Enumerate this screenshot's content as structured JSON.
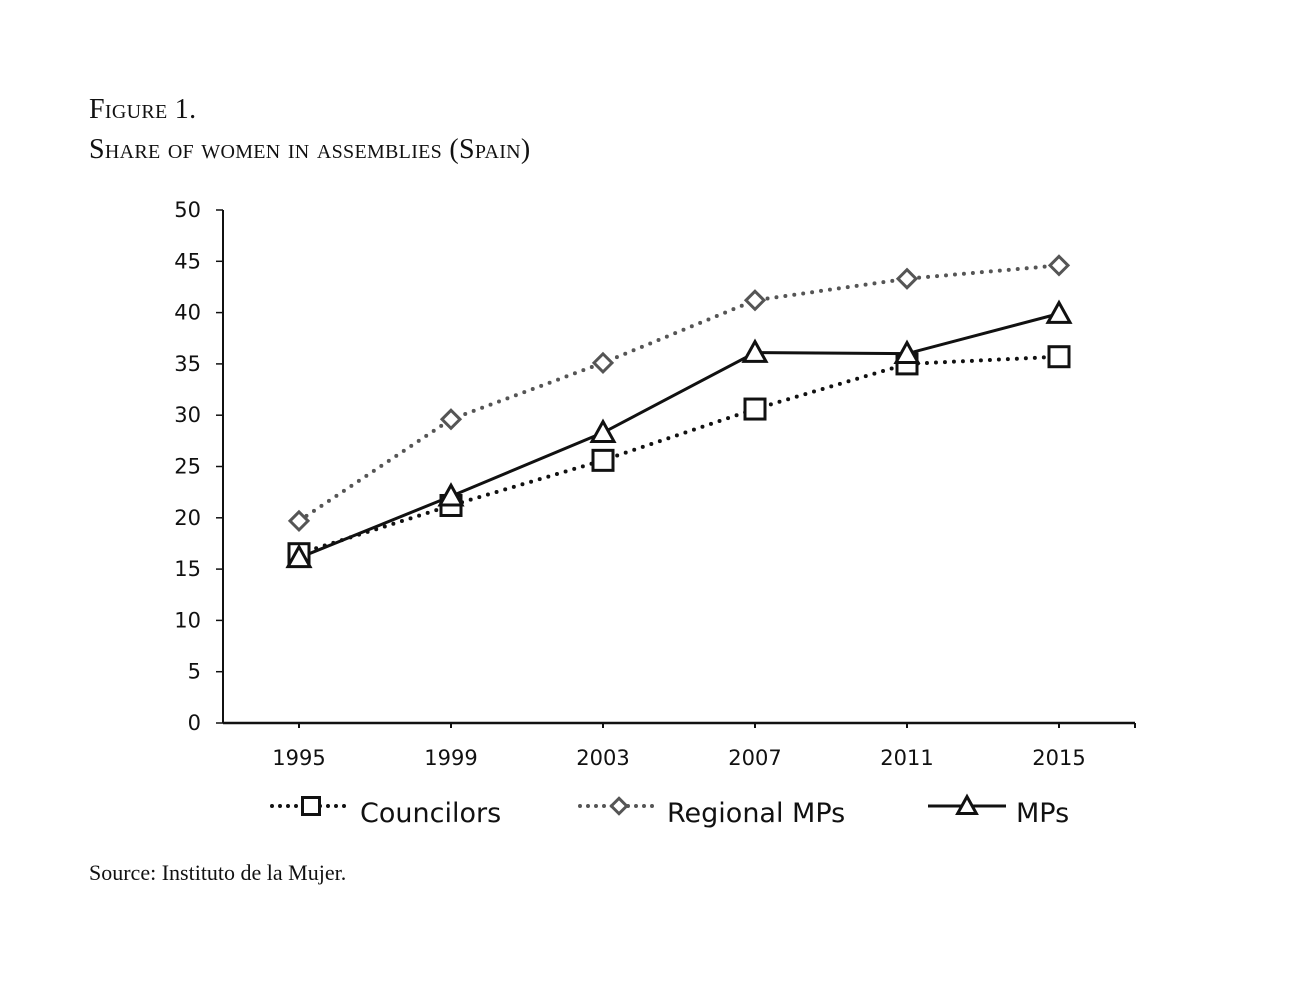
{
  "figure": {
    "label": "Figure 1.",
    "title": "Share of women in assemblies (Spain)",
    "source": "Source: Instituto de la Mujer."
  },
  "chart_data": {
    "type": "line",
    "title": "Share of women in assemblies (Spain)",
    "xlabel": "",
    "ylabel": "",
    "categories": [
      "1995",
      "1999",
      "2003",
      "2007",
      "2011",
      "2015"
    ],
    "ylim": [
      0,
      50
    ],
    "yticks": [
      0,
      5,
      10,
      15,
      20,
      25,
      30,
      35,
      40,
      45,
      50
    ],
    "grid": false,
    "legend_position": "bottom",
    "series": [
      {
        "name": "Councilors",
        "marker": "square",
        "line": "dotted",
        "color": "#111111",
        "values": [
          16.5,
          21.2,
          25.6,
          30.6,
          35.0,
          35.7
        ]
      },
      {
        "name": "Regional MPs",
        "marker": "diamond",
        "line": "dotted",
        "color": "#555555",
        "values": [
          19.7,
          29.6,
          35.1,
          41.2,
          43.3,
          44.6
        ]
      },
      {
        "name": "MPs",
        "marker": "triangle",
        "line": "solid",
        "color": "#111111",
        "values": [
          16.1,
          22.1,
          28.3,
          36.1,
          36.0,
          39.9
        ]
      }
    ]
  }
}
